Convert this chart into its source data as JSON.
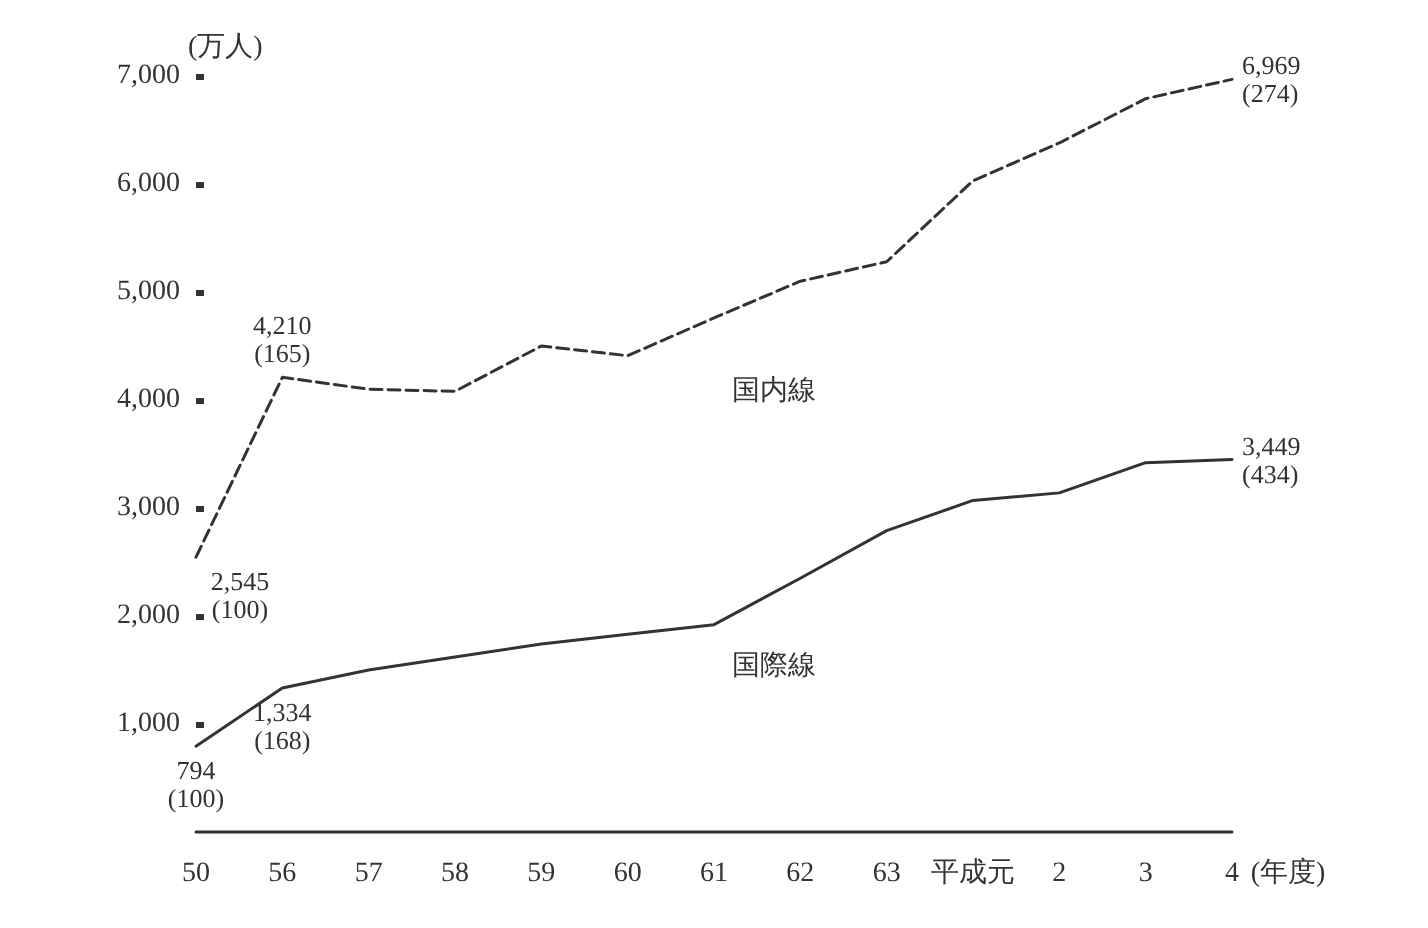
{
  "chart_data": {
    "type": "line",
    "xlabel": "(年度)",
    "ylabel": "(万人)",
    "categories": [
      "50",
      "56",
      "57",
      "58",
      "59",
      "60",
      "61",
      "62",
      "63",
      "平成元",
      "2",
      "3",
      "4"
    ],
    "ylim": [
      0,
      7000
    ],
    "yticks": [
      {
        "value": 1000,
        "label": "1,000"
      },
      {
        "value": 2000,
        "label": "2,000"
      },
      {
        "value": 3000,
        "label": "3,000"
      },
      {
        "value": 4000,
        "label": "4,000"
      },
      {
        "value": 5000,
        "label": "5,000"
      },
      {
        "value": 6000,
        "label": "6,000"
      },
      {
        "value": 7000,
        "label": "7,000"
      }
    ],
    "grid": false,
    "marker": "none",
    "series": [
      {
        "name": "国内線",
        "color": "#333333",
        "line_style": "dashed",
        "values": [
          2545,
          4210,
          4100,
          4080,
          4500,
          4410,
          4760,
          5100,
          5280,
          6030,
          6380,
          6790,
          6969
        ],
        "value_labels": [
          "2,545\n(100)",
          "4,210\n(165)",
          null,
          null,
          null,
          null,
          null,
          null,
          null,
          null,
          null,
          null,
          "6,969\n(274)"
        ]
      },
      {
        "name": "国際線",
        "color": "#333333",
        "line_style": "solid",
        "values": [
          794,
          1334,
          1500,
          1620,
          1740,
          1830,
          1920,
          2350,
          2790,
          3070,
          3140,
          3420,
          3449
        ],
        "value_labels": [
          "794\n(100)",
          "1,334\n(168)",
          null,
          null,
          null,
          null,
          null,
          null,
          null,
          null,
          null,
          null,
          "3,449\n(434)"
        ]
      }
    ]
  }
}
